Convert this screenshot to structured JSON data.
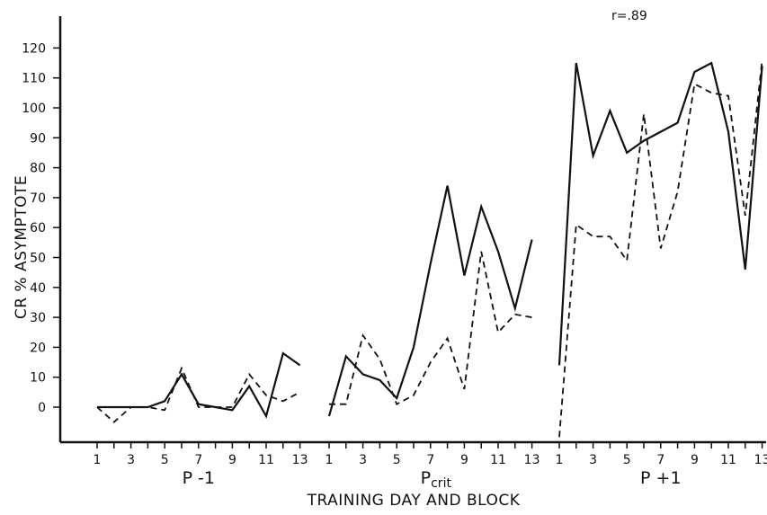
{
  "chart_data": {
    "type": "line",
    "ylabel": "CR % ASYMPTOTE",
    "xlabel": "TRAINING DAY AND BLOCK",
    "annotation": "r=.89",
    "ylim": [
      -10,
      120
    ],
    "y_ticks": [
      0,
      10,
      20,
      30,
      40,
      50,
      60,
      70,
      80,
      90,
      100,
      110,
      120
    ],
    "x_tick_labels": [
      1,
      3,
      5,
      7,
      9,
      11,
      13
    ],
    "grid": false,
    "groups": [
      {
        "label": "P -1",
        "x": [
          1,
          2,
          3,
          4,
          5,
          6,
          7,
          8,
          9,
          10,
          11,
          12,
          13
        ],
        "series": [
          {
            "style": "solid",
            "values": [
              0,
              0,
              0,
              0,
              2,
              11,
              1,
              0,
              -1,
              7,
              -3,
              18,
              14
            ]
          },
          {
            "style": "dashed",
            "values": [
              0,
              -5,
              0,
              0,
              -1,
              13,
              0,
              0,
              0,
              11,
              4,
              2,
              5
            ]
          }
        ]
      },
      {
        "label": "P crit",
        "label_main": "P",
        "label_sub": "crit",
        "x": [
          1,
          2,
          3,
          4,
          5,
          6,
          7,
          8,
          9,
          10,
          11,
          12,
          13
        ],
        "series": [
          {
            "style": "solid",
            "values": [
              -3,
              17,
              11,
              9,
              3,
              20,
              48,
              74,
              44,
              67,
              52,
              33,
              56
            ]
          },
          {
            "style": "dashed",
            "values": [
              1,
              1,
              24,
              16,
              1,
              4,
              15,
              23,
              6,
              52,
              25,
              31,
              30
            ]
          }
        ]
      },
      {
        "label": "P +1",
        "x": [
          1,
          2,
          3,
          4,
          5,
          6,
          7,
          8,
          9,
          10,
          11,
          12,
          13
        ],
        "series": [
          {
            "style": "solid",
            "values": [
              14,
              115,
              84,
              99,
              85,
              89,
              92,
              95,
              112,
              115,
              92,
              46,
              114
            ]
          },
          {
            "style": "dashed",
            "values": [
              -10,
              61,
              57,
              57,
              49,
              98,
              53,
              72,
              108,
              105,
              104,
              64,
              116
            ]
          }
        ]
      }
    ]
  }
}
